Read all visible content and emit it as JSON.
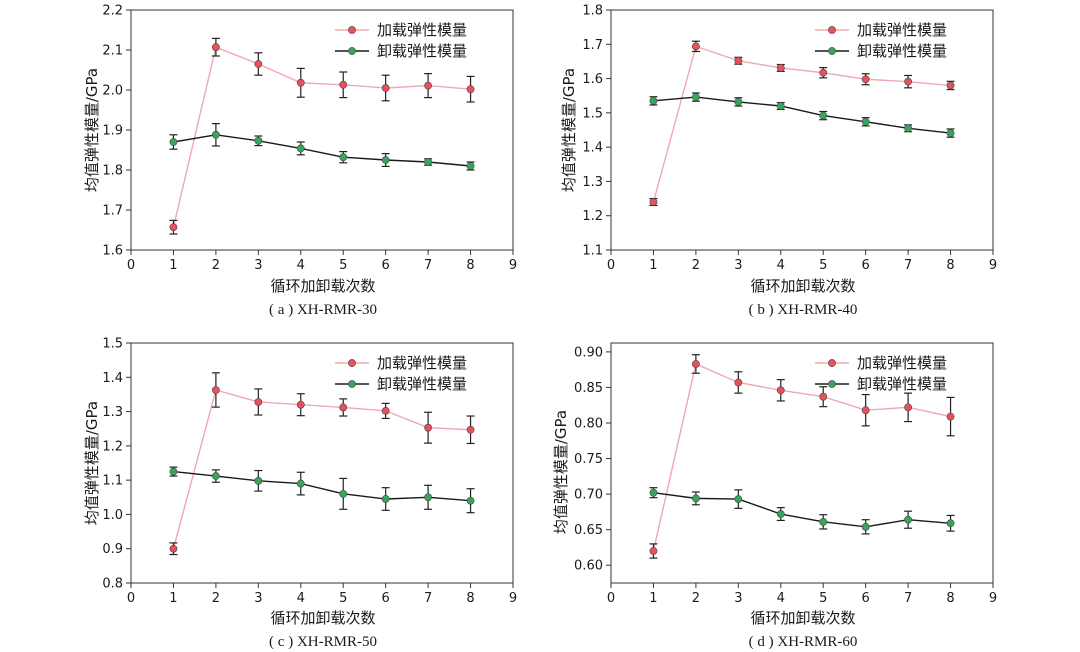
{
  "chart_data": [
    {
      "type": "line",
      "caption": "( a ) XH-RMR-30",
      "xlabel": "循环加卸载次数",
      "ylabel": "均值弹性模量/GPa",
      "xlim": [
        0,
        9
      ],
      "ylim": [
        1.6,
        2.2
      ],
      "xticks": [
        "0",
        "1",
        "2",
        "3",
        "4",
        "5",
        "6",
        "7",
        "8",
        "9"
      ],
      "yticks": [
        "1.6",
        "1.7",
        "1.8",
        "1.9",
        "2.0",
        "2.1",
        "2.2"
      ],
      "legend_position": "top-right",
      "x": [
        1,
        2,
        3,
        4,
        5,
        6,
        7,
        8
      ],
      "series": [
        {
          "name": "加载弹性模量",
          "color": "#e8505b",
          "line_color": "#f0a8b2",
          "values": [
            1.657,
            2.107,
            2.065,
            2.018,
            2.013,
            2.005,
            2.011,
            2.002
          ],
          "errors": [
            0.017,
            0.022,
            0.028,
            0.036,
            0.032,
            0.032,
            0.03,
            0.032
          ]
        },
        {
          "name": "卸载弹性模量",
          "color": "#3aa55a",
          "line_color": "#1a1a1a",
          "values": [
            1.87,
            1.888,
            1.873,
            1.854,
            1.832,
            1.825,
            1.82,
            1.81
          ],
          "errors": [
            0.018,
            0.028,
            0.012,
            0.016,
            0.014,
            0.016,
            0.008,
            0.01
          ]
        }
      ]
    },
    {
      "type": "line",
      "caption": "( b ) XH-RMR-40",
      "xlabel": "循环加卸载次数",
      "ylabel": "均值弹性模量/GPa",
      "xlim": [
        0,
        9
      ],
      "ylim": [
        1.1,
        1.8
      ],
      "xticks": [
        "0",
        "1",
        "2",
        "3",
        "4",
        "5",
        "6",
        "7",
        "8",
        "9"
      ],
      "yticks": [
        "1.1",
        "1.2",
        "1.3",
        "1.4",
        "1.5",
        "1.6",
        "1.7",
        "1.8"
      ],
      "legend_position": "top-right",
      "x": [
        1,
        2,
        3,
        4,
        5,
        6,
        7,
        8
      ],
      "series": [
        {
          "name": "加载弹性模量",
          "color": "#e8505b",
          "line_color": "#f0a8b2",
          "values": [
            1.24,
            1.694,
            1.652,
            1.631,
            1.617,
            1.598,
            1.591,
            1.58
          ],
          "errors": [
            0.01,
            0.015,
            0.01,
            0.01,
            0.015,
            0.016,
            0.018,
            0.012
          ]
        },
        {
          "name": "卸载弹性模量",
          "color": "#3aa55a",
          "line_color": "#1a1a1a",
          "values": [
            1.535,
            1.546,
            1.532,
            1.52,
            1.492,
            1.474,
            1.455,
            1.441
          ],
          "errors": [
            0.012,
            0.012,
            0.012,
            0.01,
            0.012,
            0.012,
            0.01,
            0.012
          ]
        }
      ]
    },
    {
      "type": "line",
      "caption": "( c ) XH-RMR-50",
      "xlabel": "循环加卸载次数",
      "ylabel": "均值弹性模量/GPa",
      "xlim": [
        0,
        9
      ],
      "ylim": [
        0.8,
        1.5
      ],
      "xticks": [
        "0",
        "1",
        "2",
        "3",
        "4",
        "5",
        "6",
        "7",
        "8",
        "9"
      ],
      "yticks": [
        "0.8",
        "0.9",
        "1.0",
        "1.1",
        "1.2",
        "1.3",
        "1.4",
        "1.5"
      ],
      "legend_position": "top-right",
      "x": [
        1,
        2,
        3,
        4,
        5,
        6,
        7,
        8
      ],
      "series": [
        {
          "name": "加载弹性模量",
          "color": "#e8505b",
          "line_color": "#f0a8b2",
          "values": [
            0.9,
            1.363,
            1.328,
            1.32,
            1.312,
            1.302,
            1.253,
            1.247
          ],
          "errors": [
            0.017,
            0.05,
            0.038,
            0.032,
            0.025,
            0.022,
            0.045,
            0.04
          ]
        },
        {
          "name": "卸载弹性模量",
          "color": "#3aa55a",
          "line_color": "#1a1a1a",
          "values": [
            1.125,
            1.112,
            1.098,
            1.09,
            1.06,
            1.045,
            1.05,
            1.04
          ],
          "errors": [
            0.013,
            0.018,
            0.03,
            0.033,
            0.045,
            0.033,
            0.035,
            0.035
          ]
        }
      ]
    },
    {
      "type": "line",
      "caption": "( d ) XH-RMR-60",
      "xlabel": "循环加卸载次数",
      "ylabel": "均值弹性模量/GPa",
      "xlim": [
        0,
        9
      ],
      "ylim": [
        0.575,
        0.9125
      ],
      "xticks": [
        "0",
        "1",
        "2",
        "3",
        "4",
        "5",
        "6",
        "7",
        "8",
        "9"
      ],
      "yticks": [
        "0.60",
        "0.65",
        "0.70",
        "0.75",
        "0.80",
        "0.85",
        "0.90"
      ],
      "legend_position": "top-right",
      "x": [
        1,
        2,
        3,
        4,
        5,
        6,
        7,
        8
      ],
      "series": [
        {
          "name": "加载弹性模量",
          "color": "#e8505b",
          "line_color": "#f0a8b2",
          "values": [
            0.62,
            0.883,
            0.857,
            0.846,
            0.837,
            0.818,
            0.822,
            0.809
          ],
          "errors": [
            0.01,
            0.013,
            0.015,
            0.015,
            0.014,
            0.022,
            0.02,
            0.027
          ]
        },
        {
          "name": "卸载弹性模量",
          "color": "#3aa55a",
          "line_color": "#1a1a1a",
          "values": [
            0.702,
            0.694,
            0.693,
            0.672,
            0.661,
            0.654,
            0.664,
            0.659
          ],
          "errors": [
            0.007,
            0.009,
            0.013,
            0.009,
            0.01,
            0.01,
            0.012,
            0.011
          ]
        }
      ]
    }
  ]
}
